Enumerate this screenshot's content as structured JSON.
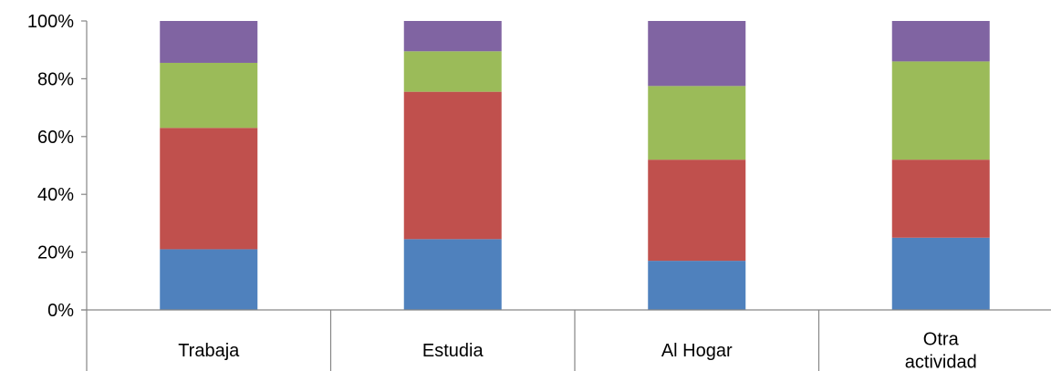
{
  "chart_data": {
    "type": "bar",
    "stacked": true,
    "percent": true,
    "categories": [
      "Trabaja",
      "Estudia",
      "Al Hogar",
      "Otra actividad"
    ],
    "category_lines": [
      [
        "Trabaja"
      ],
      [
        "Estudia"
      ],
      [
        "Al Hogar"
      ],
      [
        "Otra",
        "actividad"
      ]
    ],
    "series": [
      {
        "values": [
          21,
          24.5,
          17,
          25
        ],
        "color": "#4F81BD"
      },
      {
        "values": [
          42,
          51,
          35,
          27
        ],
        "color": "#C0504D"
      },
      {
        "values": [
          22.5,
          14,
          25.5,
          34
        ],
        "color": "#9BBB59"
      },
      {
        "values": [
          14.5,
          10.5,
          22.5,
          14
        ],
        "color": "#8064A2"
      }
    ],
    "ylim": [
      0,
      100
    ],
    "yticks": [
      "0%",
      "20%",
      "40%",
      "60%",
      "80%",
      "100%"
    ],
    "grid": false,
    "legend": "none",
    "title": "",
    "xlabel": "",
    "ylabel": ""
  }
}
